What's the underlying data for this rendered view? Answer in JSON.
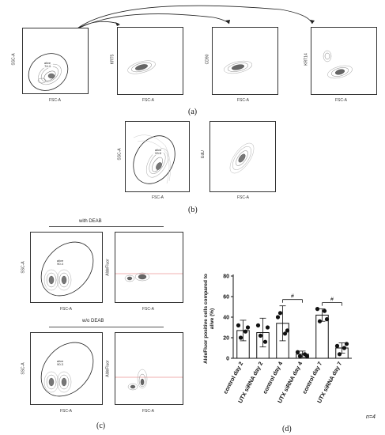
{
  "panel_a": {
    "label": "(a)",
    "plots": [
      {
        "y_label": "SSC-A",
        "x_label": "FSC-A",
        "gate_name": "alive",
        "gate_value": "74.4"
      },
      {
        "y_label": "KRT5",
        "x_label": "FSC-A"
      },
      {
        "y_label": "CD90",
        "x_label": "FSC-A"
      },
      {
        "y_label": "KRT14",
        "x_label": "FSC-A"
      }
    ]
  },
  "panel_b": {
    "label": "(b)",
    "plots": [
      {
        "y_label": "SSC-A",
        "x_label": "FSC-A",
        "gate_name": "alive",
        "gate_value": "93.6"
      },
      {
        "y_label": "EdU",
        "x_label": "FSC-A"
      }
    ]
  },
  "panel_c": {
    "label": "(c)",
    "with_header": "with DEAB",
    "without_header": "w/o DEAB",
    "plots": [
      {
        "y_label": "SSC-A",
        "x_label": "FSC-A",
        "gate_name": "alive",
        "gate_value": "90.4"
      },
      {
        "y_label": "AldeFluor",
        "x_label": "FSC-A"
      },
      {
        "y_label": "SSC-A",
        "x_label": "FSC-A",
        "gate_name": "alive",
        "gate_value": "90.3"
      },
      {
        "y_label": "AldeFluor",
        "x_label": "FSC-A"
      }
    ]
  },
  "panel_d": {
    "label": "(d)",
    "n_label": "n=4",
    "significance": "#"
  },
  "chart_data": {
    "type": "bar",
    "title": "",
    "xlabel": "",
    "ylabel": "AldeFluor positive cells compared to alive (%)",
    "ylim": [
      0,
      80
    ],
    "yticks": [
      0,
      20,
      40,
      60,
      80
    ],
    "categories": [
      "control day 2",
      "UTX siRNA day 2",
      "control day 4",
      "UTX siRNA day 4",
      "control day 7",
      "UTX siRNA day 7"
    ],
    "values": [
      27,
      25,
      34,
      4,
      42,
      10
    ],
    "errors": [
      10,
      14,
      17,
      3,
      6,
      5
    ],
    "points": [
      [
        32,
        30,
        20,
        26
      ],
      [
        32,
        30,
        22,
        16
      ],
      [
        40,
        27,
        44,
        24
      ],
      [
        6,
        2,
        2,
        4
      ],
      [
        48,
        38,
        36,
        46
      ],
      [
        12,
        14,
        4,
        10
      ]
    ],
    "comparisons": [
      {
        "from": 2,
        "to": 3,
        "label": "#"
      },
      {
        "from": 4,
        "to": 5,
        "label": "#"
      }
    ]
  }
}
